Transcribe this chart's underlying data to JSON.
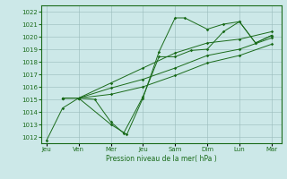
{
  "xlabel": "Pression niveau de la mer( hPa )",
  "ylim": [
    1011.5,
    1022.5
  ],
  "xlim": [
    -0.15,
    7.3
  ],
  "yticks": [
    1012,
    1013,
    1014,
    1015,
    1016,
    1017,
    1018,
    1019,
    1020,
    1021,
    1022
  ],
  "xtick_labels": [
    "Jeu",
    "Ven",
    "Mer",
    "Jeu",
    "Sam",
    "Dim",
    "Lun",
    "Mar"
  ],
  "xtick_positions": [
    0,
    1,
    2,
    3,
    4,
    5,
    6,
    7
  ],
  "bg_color": "#cce8e8",
  "line_color": "#1a6b1a",
  "grid_color": "#99bbbb",
  "line1_x": [
    0.0,
    0.5,
    1.0,
    2.0,
    2.5,
    3.0,
    3.5,
    4.0,
    4.3,
    5.0,
    5.5,
    6.0,
    6.5,
    7.0
  ],
  "line1_y": [
    1011.7,
    1014.3,
    1015.1,
    1013.0,
    1012.2,
    1015.1,
    1018.8,
    1021.5,
    1021.5,
    1020.6,
    1021.0,
    1021.2,
    1019.5,
    1020.1
  ],
  "line2_x": [
    0.5,
    1.0,
    1.5,
    2.0,
    2.4,
    3.0,
    3.5,
    4.0,
    4.5,
    5.0,
    5.5,
    6.0,
    6.5,
    7.0
  ],
  "line2_y": [
    1015.1,
    1015.1,
    1015.0,
    1013.2,
    1012.3,
    1015.2,
    1018.4,
    1018.4,
    1018.9,
    1019.0,
    1020.4,
    1021.2,
    1019.5,
    1020.1
  ],
  "line3_x": [
    0.5,
    1.0,
    2.0,
    3.0,
    4.0,
    5.0,
    6.0,
    7.0
  ],
  "line3_y": [
    1015.1,
    1015.1,
    1016.3,
    1017.5,
    1018.7,
    1019.5,
    1019.8,
    1020.4
  ],
  "line4_x": [
    0.5,
    1.0,
    2.0,
    3.0,
    4.0,
    5.0,
    6.0,
    7.0
  ],
  "line4_y": [
    1015.1,
    1015.1,
    1015.9,
    1016.6,
    1017.5,
    1018.5,
    1019.0,
    1019.9
  ],
  "line5_x": [
    0.5,
    1.0,
    2.0,
    3.0,
    4.0,
    5.0,
    6.0,
    7.0
  ],
  "line5_y": [
    1015.1,
    1015.1,
    1015.4,
    1016.0,
    1016.9,
    1017.9,
    1018.5,
    1019.4
  ]
}
